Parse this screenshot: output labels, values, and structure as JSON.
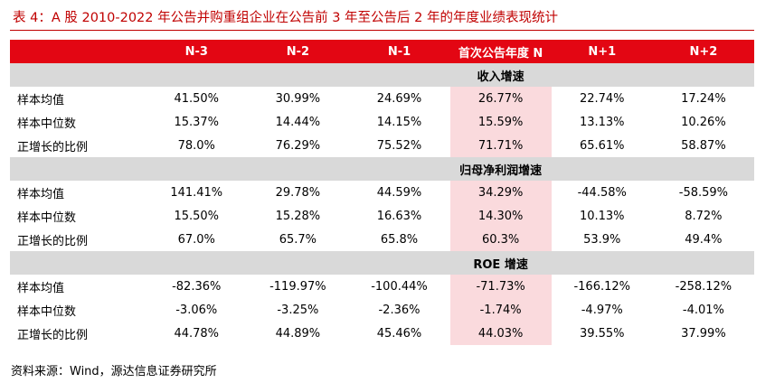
{
  "caption": "表 4：A 股 2010-2022 年公告并购重组企业在公告前 3 年至公告后 2 年的年度业绩表现统计",
  "colors": {
    "header_red": "#e30613",
    "caption_red": "#c00000",
    "section_gray": "#d9d9d9",
    "highlight_pink": "#fadadd"
  },
  "table": {
    "headers": [
      "",
      "N-3",
      "N-2",
      "N-1",
      "首次公告年度 N",
      "N+1",
      "N+2"
    ],
    "sections": [
      {
        "title": "收入增速",
        "rows": [
          {
            "label": "样本均值",
            "values": [
              "41.50%",
              "30.99%",
              "24.69%",
              "26.77%",
              "22.74%",
              "17.24%"
            ]
          },
          {
            "label": "样本中位数",
            "values": [
              "15.37%",
              "14.44%",
              "14.15%",
              "15.59%",
              "13.13%",
              "10.26%"
            ]
          },
          {
            "label": "正增长的比例",
            "values": [
              "78.0%",
              "76.29%",
              "75.52%",
              "71.71%",
              "65.61%",
              "58.87%"
            ]
          }
        ]
      },
      {
        "title": "归母净利润增速",
        "rows": [
          {
            "label": "样本均值",
            "values": [
              "141.41%",
              "29.78%",
              "44.59%",
              "34.29%",
              "-44.58%",
              "-58.59%"
            ]
          },
          {
            "label": "样本中位数",
            "values": [
              "15.50%",
              "15.28%",
              "16.63%",
              "14.30%",
              "10.13%",
              "8.72%"
            ]
          },
          {
            "label": "正增长的比例",
            "values": [
              "67.0%",
              "65.7%",
              "65.8%",
              "60.3%",
              "53.9%",
              "49.4%"
            ]
          }
        ]
      },
      {
        "title": "ROE 增速",
        "rows": [
          {
            "label": "样本均值",
            "values": [
              "-82.36%",
              "-119.97%",
              "-100.44%",
              "-71.73%",
              "-166.12%",
              "-258.12%"
            ]
          },
          {
            "label": "样本中位数",
            "values": [
              "-3.06%",
              "-3.25%",
              "-2.36%",
              "-1.74%",
              "-4.97%",
              "-4.01%"
            ]
          },
          {
            "label": "正增长的比例",
            "values": [
              "44.78%",
              "44.89%",
              "45.46%",
              "44.03%",
              "39.55%",
              "37.99%"
            ]
          }
        ]
      }
    ]
  },
  "source": "资料来源：Wind，源达信息证券研究所"
}
